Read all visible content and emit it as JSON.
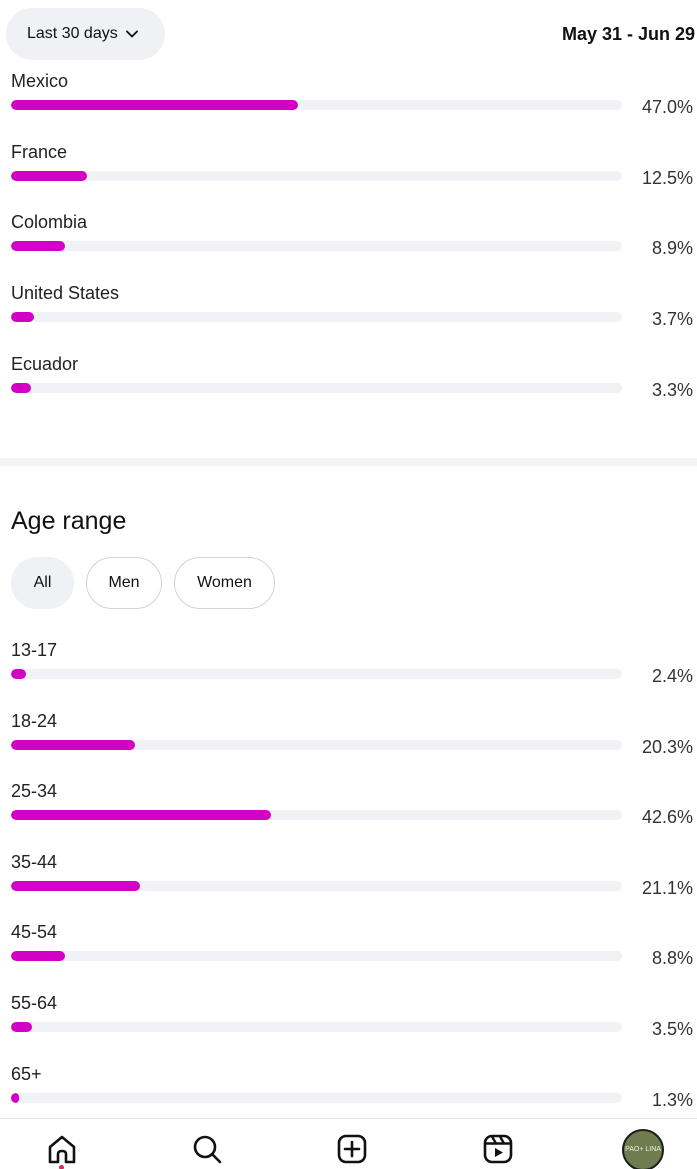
{
  "header": {
    "range_label": "Last 30 days",
    "date_range": "May 31 - Jun 29"
  },
  "countries": [
    {
      "label": "Mexico",
      "value": 47.0,
      "display": "47.0%"
    },
    {
      "label": "France",
      "value": 12.5,
      "display": "12.5%"
    },
    {
      "label": "Colombia",
      "value": 8.9,
      "display": "8.9%"
    },
    {
      "label": "United States",
      "value": 3.7,
      "display": "3.7%"
    },
    {
      "label": "Ecuador",
      "value": 3.3,
      "display": "3.3%"
    }
  ],
  "age_section": {
    "title": "Age range",
    "filters": [
      {
        "label": "All",
        "active": true
      },
      {
        "label": "Men",
        "active": false
      },
      {
        "label": "Women",
        "active": false
      }
    ],
    "rows": [
      {
        "label": "13-17",
        "value": 2.4,
        "display": "2.4%"
      },
      {
        "label": "18-24",
        "value": 20.3,
        "display": "20.3%"
      },
      {
        "label": "25-34",
        "value": 42.6,
        "display": "42.6%"
      },
      {
        "label": "35-44",
        "value": 21.1,
        "display": "21.1%"
      },
      {
        "label": "45-54",
        "value": 8.8,
        "display": "8.8%"
      },
      {
        "label": "55-64",
        "value": 3.5,
        "display": "3.5%"
      },
      {
        "label": "65+",
        "value": 1.3,
        "display": "1.3%"
      }
    ]
  },
  "bottom_nav": {
    "items": [
      "home-icon",
      "search-icon",
      "create-icon",
      "reels-icon",
      "profile-avatar"
    ],
    "avatar_text": "PAO+ LINA"
  },
  "colors": {
    "bar_fill": "#d300c5",
    "bar_track": "#f0f2f5",
    "notification_dot": "#e0245e"
  }
}
